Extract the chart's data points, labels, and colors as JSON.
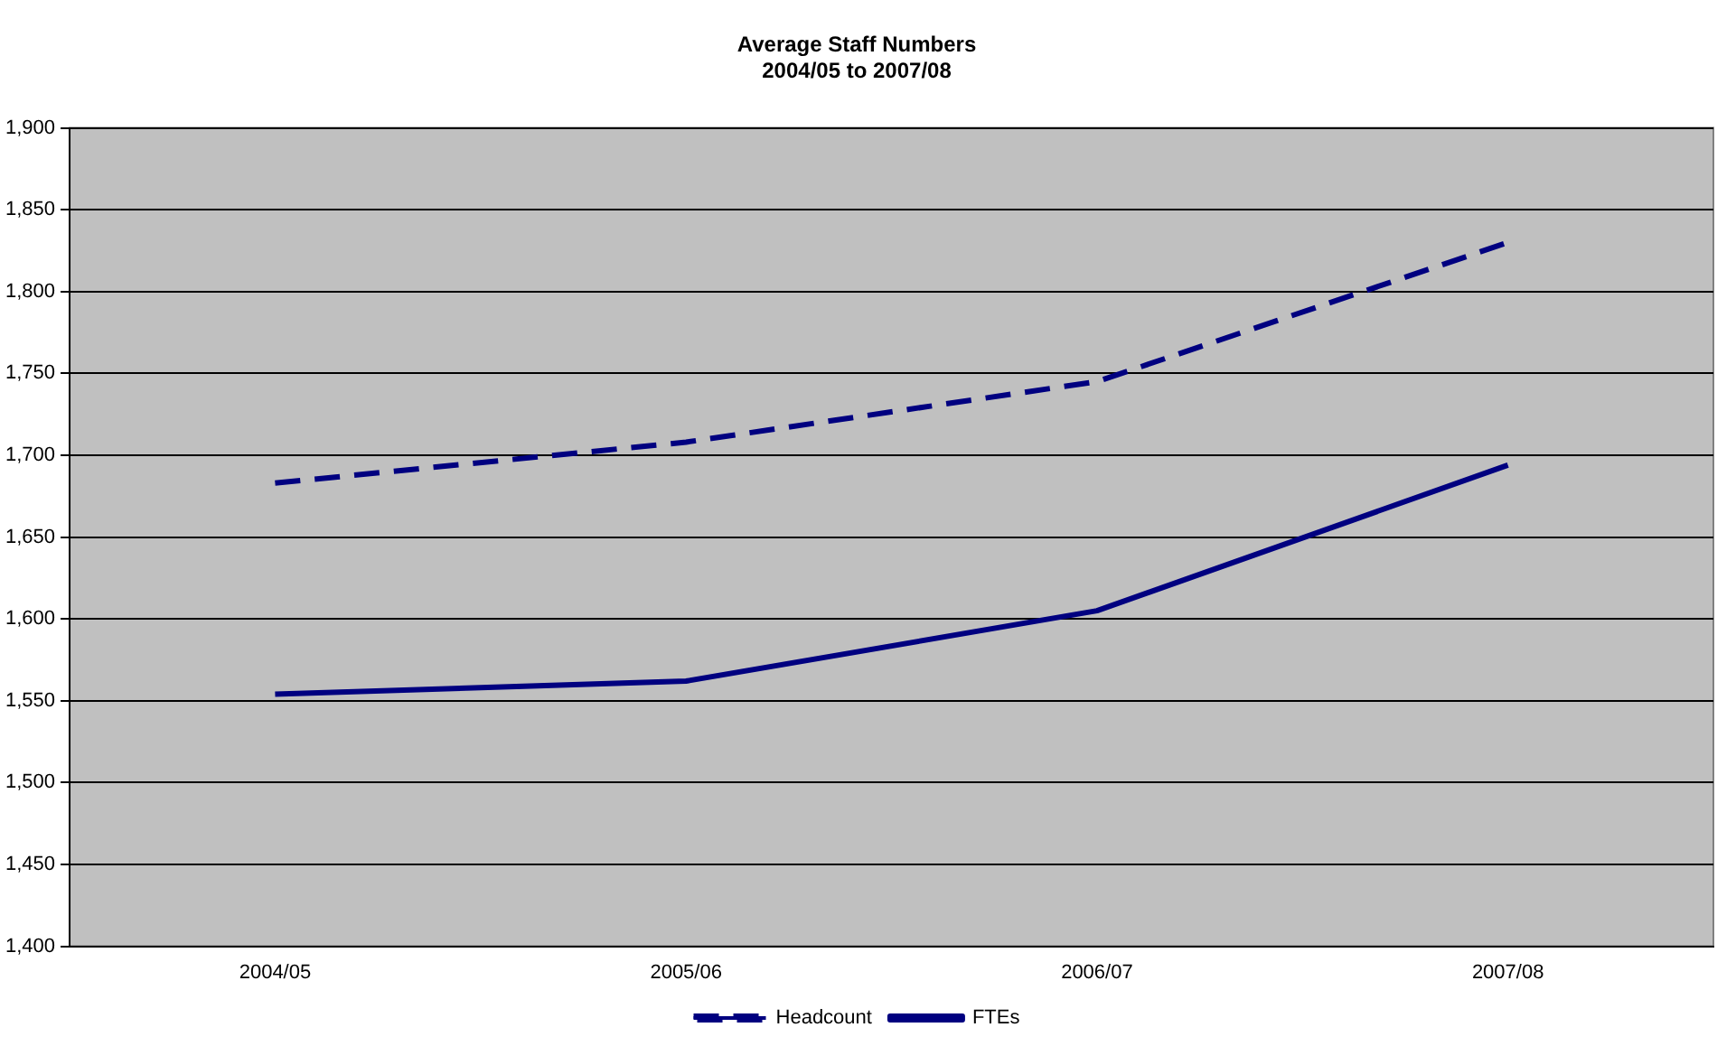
{
  "chart_data": {
    "type": "line",
    "title": "Average Staff Numbers\n2004/05 to 2007/08",
    "categories": [
      "2004/05",
      "2005/06",
      "2006/07",
      "2007/08"
    ],
    "series": [
      {
        "name": "Headcount",
        "color": "#000080",
        "values": [
          1683,
          1708,
          1745,
          1830
        ],
        "line_style": "dashed"
      },
      {
        "name": "FTEs",
        "color": "#000080",
        "values": [
          1554,
          1562,
          1605,
          1694
        ],
        "line_style": "solid"
      }
    ],
    "ylim": [
      1400,
      1900
    ],
    "yticks": [
      {
        "value": 1400,
        "label": "1,400"
      },
      {
        "value": 1450,
        "label": "1,450"
      },
      {
        "value": 1500,
        "label": "1,500"
      },
      {
        "value": 1550,
        "label": "1,550"
      },
      {
        "value": 1600,
        "label": "1,600"
      },
      {
        "value": 1650,
        "label": "1,650"
      },
      {
        "value": 1700,
        "label": "1,700"
      },
      {
        "value": 1750,
        "label": "1,750"
      },
      {
        "value": 1800,
        "label": "1,800"
      },
      {
        "value": 1850,
        "label": "1,850"
      },
      {
        "value": 1900,
        "label": "1,900"
      }
    ],
    "grid": "y",
    "legend": "bottom",
    "marker": "none"
  }
}
